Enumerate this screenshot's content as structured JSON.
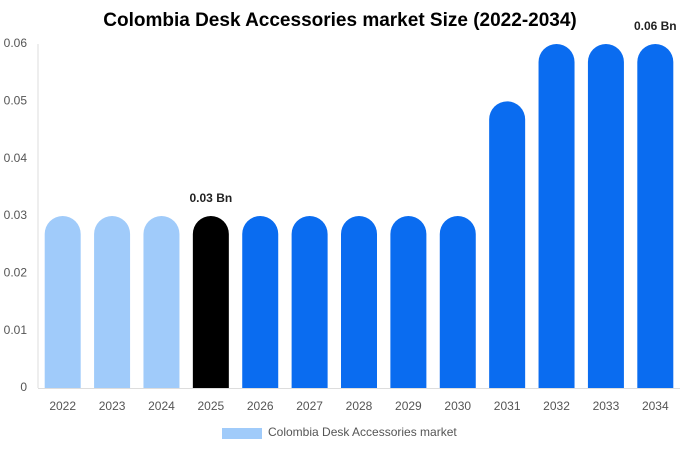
{
  "chart_data": {
    "type": "bar",
    "title": "Colombia Desk Accessories market Size (2022-2034)",
    "categories": [
      "2022",
      "2023",
      "2024",
      "2025",
      "2026",
      "2027",
      "2028",
      "2029",
      "2030",
      "2031",
      "2032",
      "2033",
      "2034"
    ],
    "series": [
      {
        "name": "Colombia Desk Accessories market",
        "color": "#a0cbfa",
        "values": [
          0.03,
          0.03,
          0.03,
          0.03,
          0.03,
          0.03,
          0.03,
          0.03,
          0.03,
          0.05,
          0.06,
          0.06,
          0.06
        ],
        "value_labels": [
          null,
          null,
          null,
          "0.03 Bn",
          null,
          null,
          null,
          null,
          null,
          null,
          null,
          null,
          "0.06 Bn"
        ],
        "colors": [
          "#a0cbfa",
          "#a0cbfa",
          "#a0cbfa",
          "#000000",
          "#0a6cf0",
          "#0a6cf0",
          "#0a6cf0",
          "#0a6cf0",
          "#0a6cf0",
          "#0a6cf0",
          "#0a6cf0",
          "#0a6cf0",
          "#0a6cf0"
        ]
      }
    ],
    "ylim": [
      0,
      0.06
    ],
    "yticks": [
      0,
      0.01,
      0.02,
      0.03,
      0.04,
      0.05,
      0.06
    ],
    "grid": false
  }
}
